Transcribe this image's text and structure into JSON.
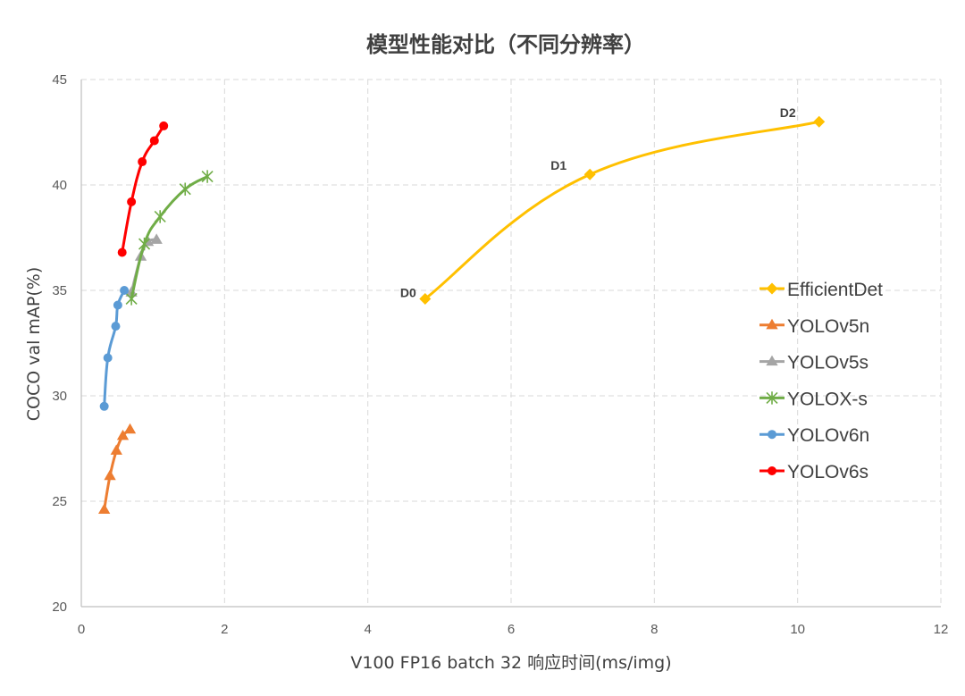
{
  "chart_data": {
    "type": "line",
    "title": "模型性能对比（不同分辨率）",
    "xlabel": "V100 FP16 batch 32 响应时间(ms/img)",
    "ylabel": "COCO val mAP(%)",
    "xlim": [
      0,
      12
    ],
    "ylim": [
      20,
      45
    ],
    "xticks": [
      0,
      2,
      4,
      6,
      8,
      10,
      12
    ],
    "yticks": [
      20,
      25,
      30,
      35,
      40,
      45
    ],
    "grid": "dashed",
    "legend_position": "right",
    "series": [
      {
        "name": "EfficientDet",
        "color": "#ffc000",
        "marker": "diamond",
        "x": [
          4.8,
          7.1,
          10.3
        ],
        "y": [
          34.6,
          40.5,
          43.0
        ],
        "point_labels": [
          "D0",
          "D1",
          "D2"
        ]
      },
      {
        "name": "YOLOv5n",
        "color": "#ed7d31",
        "marker": "triangle",
        "x": [
          0.32,
          0.4,
          0.49,
          0.58,
          0.68
        ],
        "y": [
          24.6,
          26.2,
          27.4,
          28.1,
          28.4
        ]
      },
      {
        "name": "YOLOv5s",
        "color": "#a5a5a5",
        "marker": "triangle",
        "x": [
          0.7,
          0.83,
          0.93,
          1.05
        ],
        "y": [
          34.9,
          36.6,
          37.3,
          37.4
        ]
      },
      {
        "name": "YOLOX-s",
        "color": "#70ad47",
        "marker": "star",
        "x": [
          0.7,
          0.88,
          1.1,
          1.45,
          1.76
        ],
        "y": [
          34.6,
          37.2,
          38.5,
          39.8,
          40.4
        ]
      },
      {
        "name": "YOLOv6n",
        "color": "#5b9bd5",
        "marker": "circle",
        "x": [
          0.32,
          0.37,
          0.48,
          0.51,
          0.6
        ],
        "y": [
          29.5,
          31.8,
          33.3,
          34.3,
          35.0
        ]
      },
      {
        "name": "YOLOv6s",
        "color": "#ff0000",
        "marker": "circle",
        "x": [
          0.57,
          0.7,
          0.85,
          1.02,
          1.15
        ],
        "y": [
          36.8,
          39.2,
          41.1,
          42.1,
          42.8
        ]
      }
    ]
  }
}
